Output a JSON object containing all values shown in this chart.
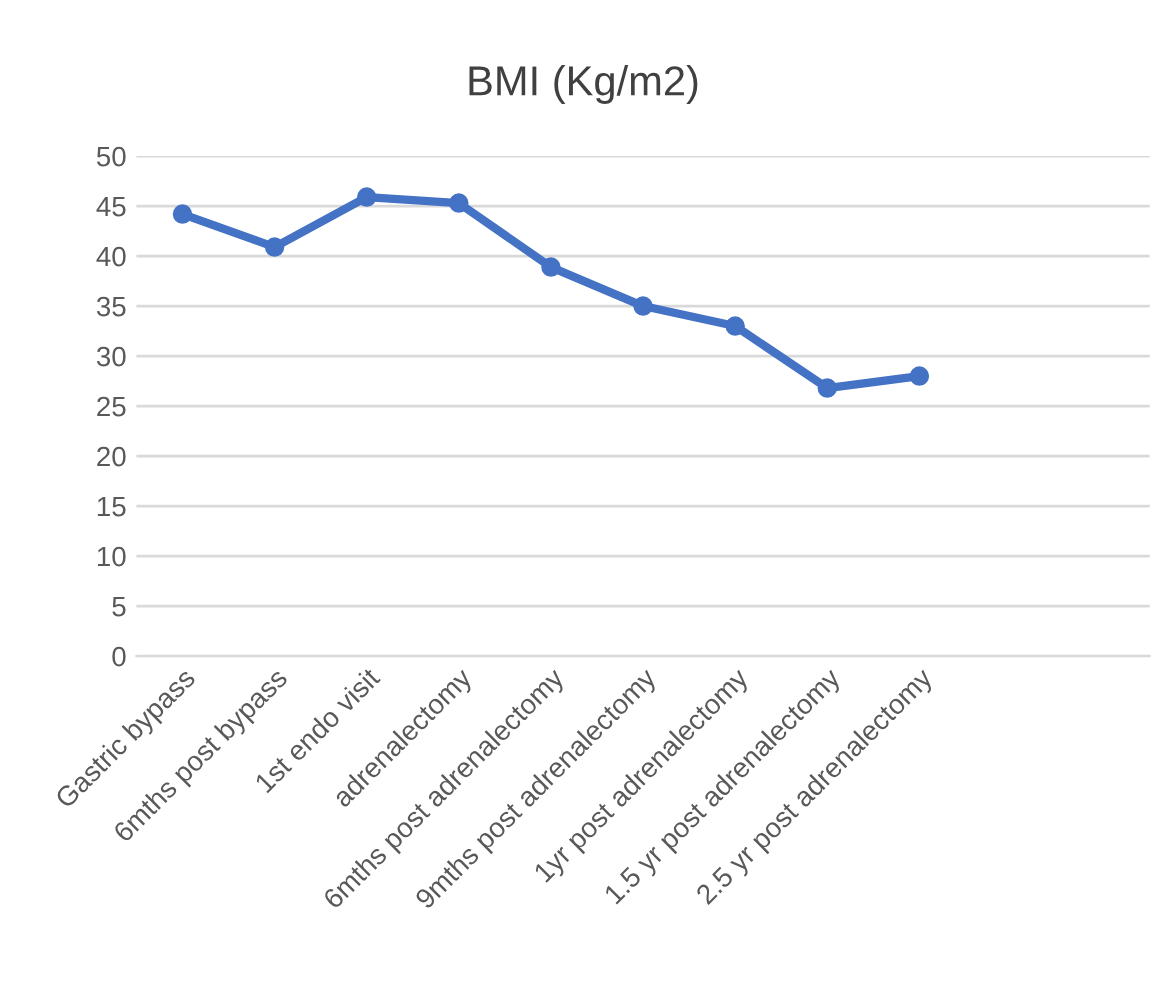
{
  "chart_data": {
    "type": "line",
    "title": "BMI (Kg/m2)",
    "categories": [
      "Gastric bypass",
      "6mths post bypass",
      "1st endo visit",
      "adrenalectomy",
      "6mths post adrenalectomy",
      "9mths post adrenalectomy",
      "1yr post adrenalectomy",
      "1.5 yr post adrenalectomy",
      "2.5 yr post adrenalectomy",
      null,
      null
    ],
    "series": [
      {
        "color": "#4472c4",
        "values": [
          44.2,
          40.9,
          45.9,
          45.3,
          38.9,
          35.0,
          33.0,
          26.8,
          28.0,
          null,
          null
        ]
      }
    ],
    "ylim": [
      0,
      50
    ],
    "yticks": [
      0,
      5,
      10,
      15,
      20,
      25,
      30,
      35,
      40,
      45,
      50
    ],
    "grid": "y",
    "legend": false,
    "marker": "circle",
    "line_style": "solid"
  }
}
